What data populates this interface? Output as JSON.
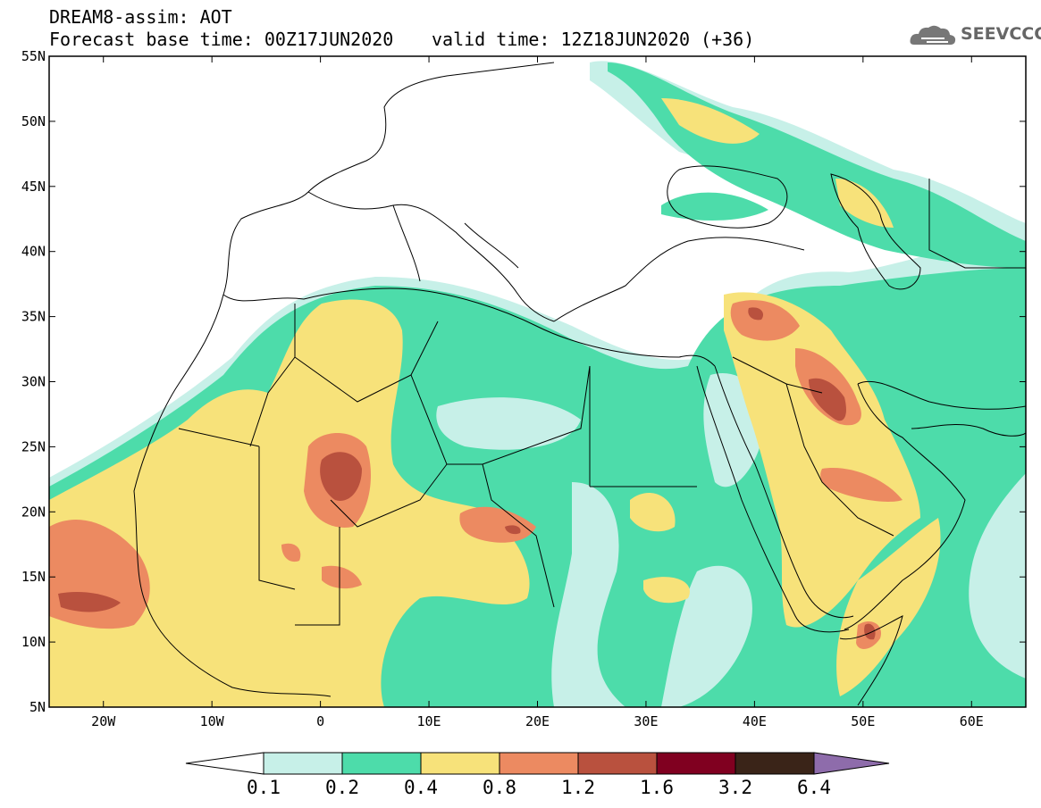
{
  "header": {
    "model_title": "DREAM8-assim: AOT",
    "base_time": "Forecast base time: 00Z17JUN2020",
    "valid_time": "valid time: 12Z18JUN2020 (+36)"
  },
  "logo": {
    "text": "SEEVCCC",
    "icon": "cloud-logo-icon"
  },
  "map": {
    "lon_range": [
      -25,
      65
    ],
    "lat_range": [
      5,
      55
    ],
    "lon_ticks": [
      "20W",
      "10W",
      "0",
      "10E",
      "20E",
      "30E",
      "40E",
      "50E",
      "60E"
    ],
    "lat_ticks": [
      "55N",
      "50N",
      "45N",
      "40N",
      "35N",
      "30N",
      "25N",
      "20N",
      "15N",
      "10N",
      "5N"
    ],
    "field": "Aerosol optical thickness (dust)"
  },
  "colorbar": {
    "labels": [
      "0.1",
      "0.2",
      "0.4",
      "0.8",
      "1.2",
      "1.6",
      "3.2",
      "6.4"
    ],
    "colors": [
      "#c7f0e8",
      "#4ddcaa",
      "#f7e27a",
      "#ec8a61",
      "#b9513e",
      "#800020",
      "#3a2418",
      "#8e6cab"
    ],
    "under_color": "#ffffff"
  }
}
